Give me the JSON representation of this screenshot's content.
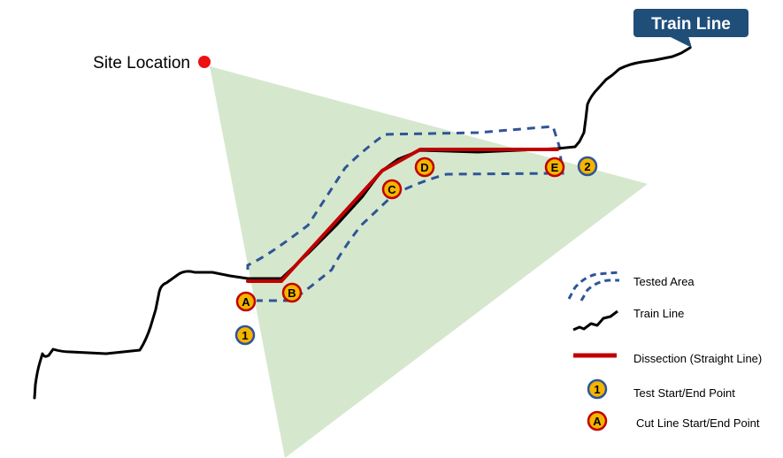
{
  "site_label": "Site Location",
  "train_line_tag": "Train Line",
  "colors": {
    "coverage": "#d5e8cd",
    "site_dot": "#ee1111",
    "train": "#000000",
    "dissection": "#c00000",
    "tested_area": "#2f5597",
    "tag_bg": "#1f4e79",
    "marker_fill": "#f5b400"
  },
  "cut_points": [
    "A",
    "B",
    "C",
    "D",
    "E"
  ],
  "test_points": [
    "1",
    "2"
  ],
  "legend": {
    "tested_area": "Tested Area",
    "train_line": "Train Line",
    "dissection": "Dissection (Straight Line)",
    "test_point_symbol": "1",
    "test_point": "Test Start/End Point",
    "cut_point_symbol": "A",
    "cut_point": "Cut Line Start/End Point"
  }
}
